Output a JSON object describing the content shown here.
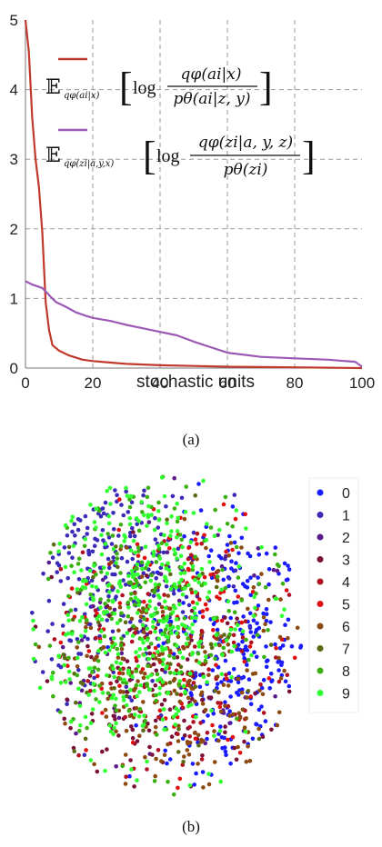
{
  "captions": {
    "a": "(a)",
    "b": "(b)"
  },
  "chart_data": [
    {
      "type": "line",
      "xlabel": "stochastic units",
      "ylabel": "",
      "xlim": [
        0,
        100
      ],
      "ylim": [
        0,
        5
      ],
      "xticks": [
        "0",
        "20",
        "40",
        "60",
        "80",
        "100"
      ],
      "yticks": [
        "0",
        "1",
        "2",
        "3",
        "4",
        "5"
      ],
      "grid": true,
      "legend_position": "top-right",
      "series": [
        {
          "name": "E_{qφ(a_i|x)} [ log qφ(a_i|x) / pθ(a_i|z,y) ]",
          "color": "#c0392b",
          "x": [
            0,
            1,
            2,
            3,
            4,
            5,
            6,
            7,
            8,
            10,
            13,
            17,
            20,
            25,
            30,
            40,
            50,
            60,
            70,
            80,
            90,
            100
          ],
          "y": [
            5.0,
            4.55,
            3.6,
            3.0,
            2.6,
            1.95,
            0.95,
            0.55,
            0.33,
            0.25,
            0.18,
            0.12,
            0.1,
            0.08,
            0.06,
            0.04,
            0.03,
            0.02,
            0.015,
            0.01,
            0.005,
            0.0
          ]
        },
        {
          "name": "E_{qφ(z_i|a,y,x)} [ log qφ(z_i|a,y,z) / pθ(z_i) ]",
          "color": "#9b59b6",
          "x": [
            0,
            2,
            5,
            7,
            9,
            12,
            15,
            18,
            20,
            25,
            30,
            35,
            40,
            45,
            50,
            55,
            60,
            65,
            70,
            80,
            90,
            95,
            98,
            100
          ],
          "y": [
            1.25,
            1.2,
            1.15,
            1.05,
            0.95,
            0.88,
            0.8,
            0.75,
            0.72,
            0.68,
            0.62,
            0.57,
            0.52,
            0.47,
            0.38,
            0.3,
            0.22,
            0.19,
            0.16,
            0.14,
            0.12,
            0.1,
            0.09,
            0.02
          ]
        }
      ],
      "legend": {
        "entries": [
          {
            "expectation": "𝔼",
            "subscript": "qφ(ai|x)",
            "log": "log",
            "numerator": "qφ(ai|x)",
            "denominator": "pθ(ai|z, y)"
          },
          {
            "expectation": "𝔼",
            "subscript": "qφ(zi|a,y,x)",
            "log": "log",
            "numerator": "qφ(zi|a, y, z)",
            "denominator": "pθ(zi)"
          }
        ]
      }
    },
    {
      "type": "scatter",
      "xlabel": "",
      "ylabel": "",
      "legend_position": "right",
      "series": [
        {
          "name": "0",
          "color": "#1a1aff"
        },
        {
          "name": "1",
          "color": "#3a2ab8"
        },
        {
          "name": "2",
          "color": "#5b1a8c"
        },
        {
          "name": "3",
          "color": "#7a1038"
        },
        {
          "name": "4",
          "color": "#b01020"
        },
        {
          "name": "5",
          "color": "#e01010"
        },
        {
          "name": "6",
          "color": "#8c4a10"
        },
        {
          "name": "7",
          "color": "#5a6a10"
        },
        {
          "name": "8",
          "color": "#3ab010"
        },
        {
          "name": "9",
          "color": "#30ff30"
        }
      ]
    }
  ]
}
